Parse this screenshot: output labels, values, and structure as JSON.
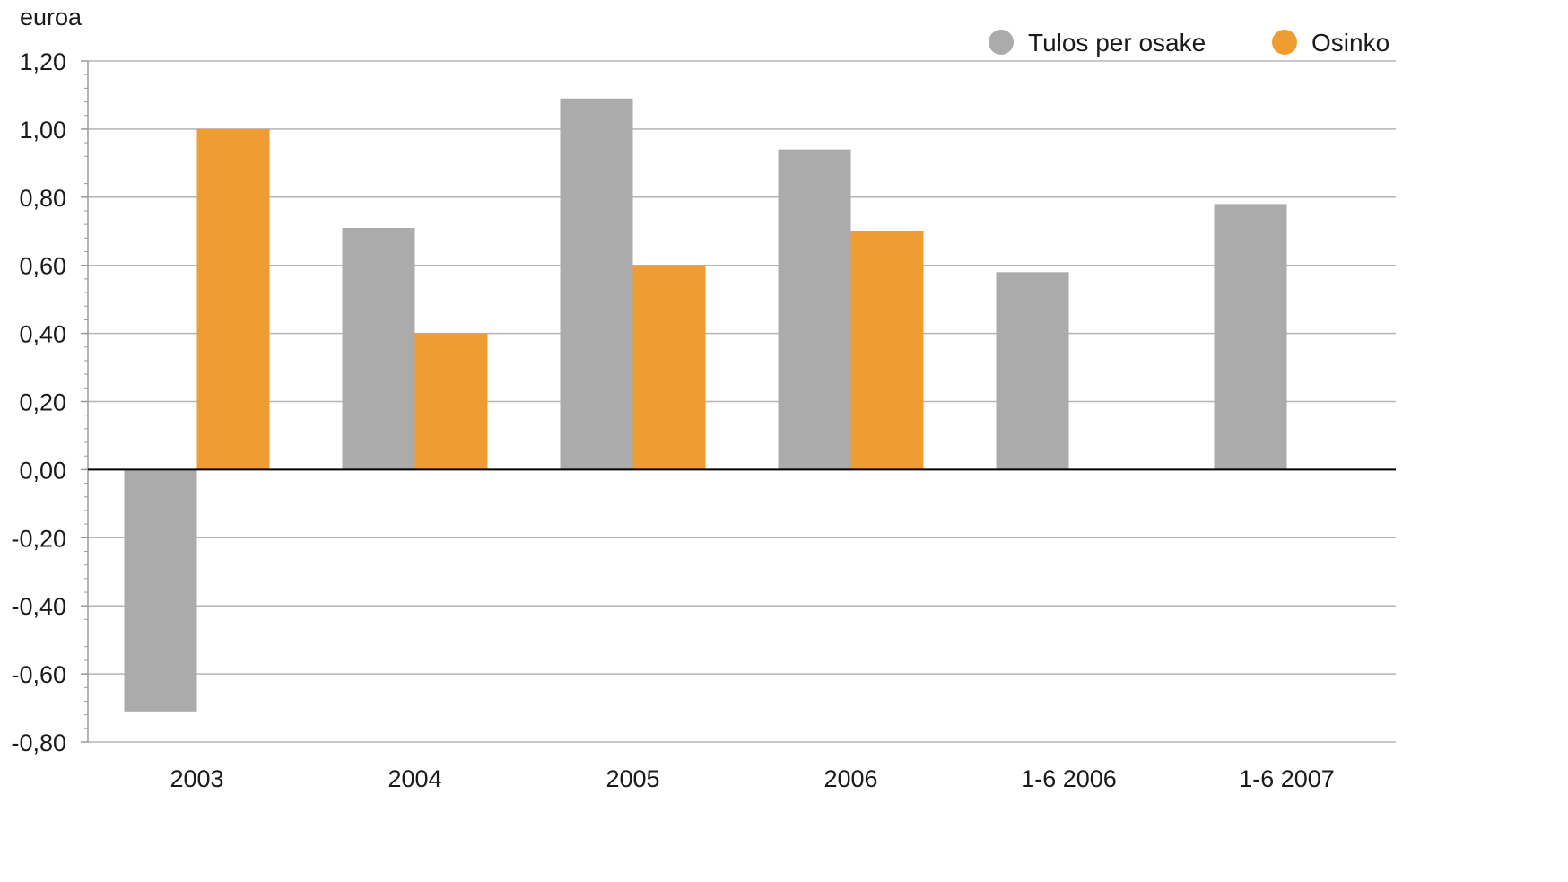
{
  "chart_data": {
    "type": "bar",
    "ylabel": "euroa",
    "categories": [
      "2003",
      "2004",
      "2005",
      "2006",
      "1-6 2006",
      "1-6 2007"
    ],
    "series": [
      {
        "name": "Tulos per osake",
        "color": "#ababab",
        "values": [
          -0.71,
          0.71,
          1.09,
          0.94,
          0.58,
          0.78
        ]
      },
      {
        "name": "Osinko",
        "color": "#ef9c33",
        "values": [
          1.0,
          0.4,
          0.6,
          0.7,
          null,
          null
        ]
      }
    ],
    "ylim": [
      -0.8,
      1.2
    ],
    "yticks": [
      "1,20",
      "1,00",
      "0,80",
      "0,60",
      "0,40",
      "0,20",
      "0,00",
      "-0,20",
      "-0,40",
      "-0,60",
      "-0,80"
    ],
    "grid": true,
    "legend_position": "top-right"
  }
}
